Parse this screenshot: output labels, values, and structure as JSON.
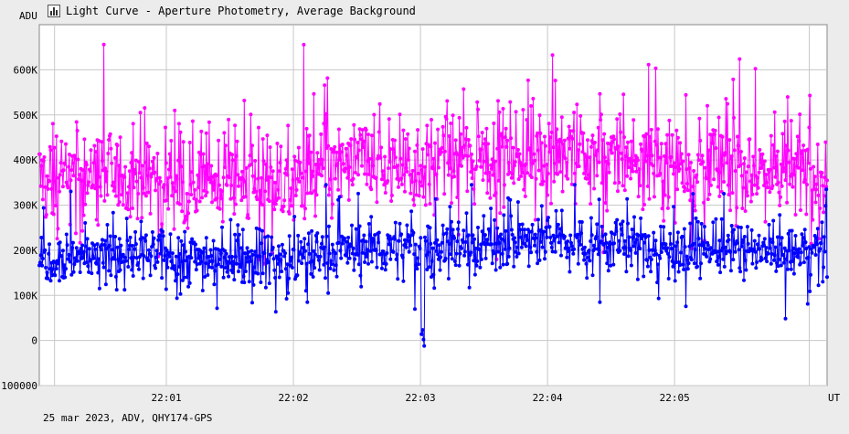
{
  "window": {
    "title": "Light Curve - Aperture Photometry, Average Background",
    "footer": "25 mar 2023, ADV, QHY174-GPS"
  },
  "colors": {
    "background": "#ececec",
    "plot_background": "#ffffff",
    "grid": "#c8c8c8",
    "series_target": "#ff00ff",
    "series_comparison": "#0000ff"
  },
  "icons": {
    "title": "light-curve-icon"
  },
  "chart_data": {
    "type": "line",
    "title": "Light Curve - Aperture Photometry, Average Background",
    "ylabel": "ADU",
    "xlabel": "UT",
    "ylim": [
      -100000,
      700000
    ],
    "xlim": [
      0.0,
      6.2
    ],
    "y_ticks": [
      -100000,
      0,
      100000,
      200000,
      300000,
      400000,
      500000,
      600000
    ],
    "y_tick_labels": [
      "-100000",
      "0",
      "100K",
      "200K",
      "300K",
      "400K",
      "500K",
      "600K"
    ],
    "x_ticks": [
      1.0,
      2.0,
      3.0,
      4.0,
      5.0
    ],
    "x_tick_labels": [
      "22:01",
      "22:02",
      "22:03",
      "22:04",
      "22:05"
    ],
    "grid": true,
    "markers": true,
    "series": [
      {
        "color": "#ff00ff",
        "baseline_profile": {
          "x": [
            0.0,
            0.5,
            1.0,
            1.5,
            2.0,
            2.5,
            3.0,
            3.5,
            4.0,
            4.5,
            5.0,
            5.5,
            6.0,
            6.2
          ],
          "y": [
            360000,
            365000,
            360000,
            355000,
            350000,
            395000,
            390000,
            410000,
            420000,
            405000,
            395000,
            385000,
            375000,
            370000
          ]
        },
        "scatter_range": 95000,
        "spike_max": 670000,
        "spike_min": 170000
      },
      {
        "color": "#0000ff",
        "baseline_profile": {
          "x": [
            0.0,
            0.5,
            1.0,
            1.5,
            2.0,
            2.5,
            3.0,
            3.5,
            4.0,
            4.5,
            5.0,
            5.5,
            6.0,
            6.2
          ],
          "y": [
            185000,
            190000,
            185000,
            185000,
            180000,
            205000,
            205000,
            215000,
            225000,
            215000,
            205000,
            200000,
            195000,
            195000
          ]
        },
        "scatter_range": 55000,
        "spike_max": 345000,
        "spike_min": -15000,
        "dip_x": 3.02
      }
    ]
  }
}
